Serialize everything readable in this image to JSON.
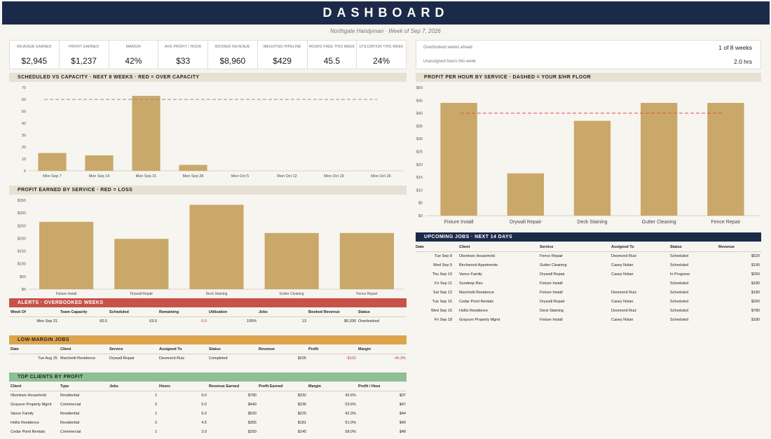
{
  "header": {
    "title": "DASHBOARD",
    "subtitle": "Northgate Handyman · Week of Sep 7, 2026"
  },
  "kpis": [
    {
      "label": "Revenue Earned",
      "value": "$2,945"
    },
    {
      "label": "Profit Earned",
      "value": "$1,237"
    },
    {
      "label": "Margin",
      "value": "42%"
    },
    {
      "label": "Avg Profit / Hour",
      "value": "$33"
    },
    {
      "label": "Booked Revenue",
      "value": "$8,960"
    },
    {
      "label": "Weighted Pipeline",
      "value": "$429"
    },
    {
      "label": "Hours Free This Week",
      "value": "45.5"
    },
    {
      "label": "Utilization This Week",
      "value": "24%"
    }
  ],
  "overbooked": {
    "weeks_label": "Overbooked weeks ahead",
    "weeks_value": "1 of 8 weeks",
    "hours_label": "Unassigned hours this week",
    "hours_value": "2.0 hrs"
  },
  "sections": {
    "capacity": "SCHEDULED VS CAPACITY  ·  NEXT 8 WEEKS  ·  RED = OVER CAPACITY",
    "profit_service": "PROFIT EARNED BY SERVICE  ·  RED = LOSS",
    "pph": "PROFIT PER HOUR BY SERVICE  ·  DASHED = YOUR $/HR FLOOR",
    "upcoming": "UPCOMING JOBS  ·  NEXT 14 DAYS",
    "alerts": "ALERTS  ·  OVERBOOKED WEEKS",
    "low_margin": "LOW-MARGIN JOBS",
    "top_clients": "TOP CLIENTS BY PROFIT"
  },
  "colors": {
    "bar": "#c9a86a",
    "navy": "#1c2a4a",
    "dashed": "#d9534f"
  },
  "chart_data": [
    {
      "type": "bar",
      "categories": [
        "Mon Sep 7",
        "Mon Sep 14",
        "Mon Sep 21",
        "Mon Sep 28",
        "Mon Oct 5",
        "Mon Oct 12",
        "Mon Oct 19",
        "Mon Oct 26"
      ],
      "values": [
        15,
        13,
        63,
        5,
        0,
        0,
        0,
        0
      ],
      "reference_line": 60,
      "ylim": [
        0,
        70
      ],
      "yticks": [
        0,
        10,
        20,
        30,
        40,
        50,
        60,
        70
      ],
      "ytick_labels": [
        "0",
        "10",
        "20",
        "30",
        "40",
        "50",
        "60",
        "70"
      ],
      "grid": false
    },
    {
      "type": "bar",
      "categories": [
        "Fixture Install",
        "Drywall Repair",
        "Deck Staining",
        "Gutter Cleaning",
        "Fence Repair"
      ],
      "values": [
        265,
        198,
        332,
        221,
        221
      ],
      "ylim": [
        0,
        350
      ],
      "yticks": [
        0,
        50,
        100,
        150,
        200,
        250,
        300,
        350
      ],
      "ytick_labels": [
        "$0",
        "$50",
        "$100",
        "$150",
        "$200",
        "$250",
        "$300",
        "$350"
      ],
      "grid": false
    },
    {
      "type": "bar",
      "categories": [
        "Fixture Install",
        "Drywall Repair",
        "Deck Staining",
        "Gutter Cleaning",
        "Fence Repair"
      ],
      "values": [
        44,
        16.5,
        37,
        44,
        44
      ],
      "reference_line": 40,
      "ylim": [
        0,
        50
      ],
      "yticks": [
        0,
        5,
        10,
        15,
        20,
        25,
        30,
        35,
        40,
        45,
        50
      ],
      "ytick_labels": [
        "$0",
        "$5",
        "$10",
        "$15",
        "$20",
        "$25",
        "$30",
        "$35",
        "$40",
        "$45",
        "$50"
      ],
      "grid": false
    }
  ],
  "upcoming_jobs": {
    "headers": [
      "Date",
      "Client",
      "Service",
      "Assigned To",
      "Status",
      "Revenue"
    ],
    "rows": [
      [
        "Tue Sep 8",
        "Okonkwo Household",
        "Fence Repair",
        "Desmond Ruiz",
        "Scheduled",
        "$520"
      ],
      [
        "Wed Sep 9",
        "Birchwood Apartments",
        "Gutter Cleaning",
        "Casey Nolan",
        "Scheduled",
        "$195"
      ],
      [
        "Thu Sep 10",
        "Vance Family",
        "Drywall Repair",
        "Casey Nolan",
        "In Progress",
        "$260"
      ],
      [
        "Fri Sep 11",
        "Sundeep Rao",
        "Fixture Install",
        "",
        "Scheduled",
        "$180"
      ],
      [
        "Sat Sep 12",
        "Marchetti Residence",
        "Fixture Install",
        "Desmond Ruiz",
        "Scheduled",
        "$180"
      ],
      [
        "Tue Sep 15",
        "Cedar Point Rentals",
        "Drywall Repair",
        "Casey Nolan",
        "Scheduled",
        "$260"
      ],
      [
        "Wed Sep 16",
        "Hollis Residence",
        "Deck Staining",
        "Desmond Ruiz",
        "Scheduled",
        "$780"
      ],
      [
        "Fri Sep 18",
        "Grayson Property Mgmt",
        "Fixture Install",
        "Casey Nolan",
        "Scheduled",
        "$180"
      ]
    ]
  },
  "alerts": {
    "headers": [
      "Week Of",
      "Team Capacity",
      "Scheduled",
      "Remaining",
      "Utilization",
      "Jobs",
      "Booked Revenue",
      "Status"
    ],
    "rows": [
      [
        "Mon Sep 21",
        "60.0",
        "63.0",
        "-3.0",
        "105%",
        "13",
        "$6,030",
        "Overbooked"
      ]
    ]
  },
  "low_margin": {
    "headers": [
      "Date",
      "Client",
      "Service",
      "Assigned To",
      "Status",
      "Revenue",
      "Profit",
      "Margin"
    ],
    "rows": [
      [
        "Tue Aug 25",
        "Marchetti Residence",
        "Drywall Repair",
        "Desmond Ruiz",
        "Completed",
        "$225",
        "-$102",
        "-45.3%"
      ]
    ]
  },
  "top_clients": {
    "headers": [
      "Client",
      "Type",
      "Jobs",
      "Hours",
      "Revenue Earned",
      "Profit Earned",
      "Margin",
      "Profit / Hour"
    ],
    "rows": [
      [
        "Okonkwo Household",
        "Residential",
        "1",
        "9.0",
        "$780",
        "$332",
        "42.6%",
        "$37"
      ],
      [
        "Grayson Property Mgmt",
        "Commercial",
        "2",
        "5.0",
        "$440",
        "$236",
        "53.6%",
        "$47"
      ],
      [
        "Vance Family",
        "Residential",
        "1",
        "5.0",
        "$520",
        "$220",
        "42.3%",
        "$44"
      ],
      [
        "Hollis Residence",
        "Residential",
        "2",
        "4.5",
        "$355",
        "$181",
        "51.0%",
        "$40"
      ],
      [
        "Cedar Point Rentals",
        "Commercial",
        "1",
        "3.0",
        "$250",
        "$145",
        "58.0%",
        "$48"
      ]
    ]
  }
}
